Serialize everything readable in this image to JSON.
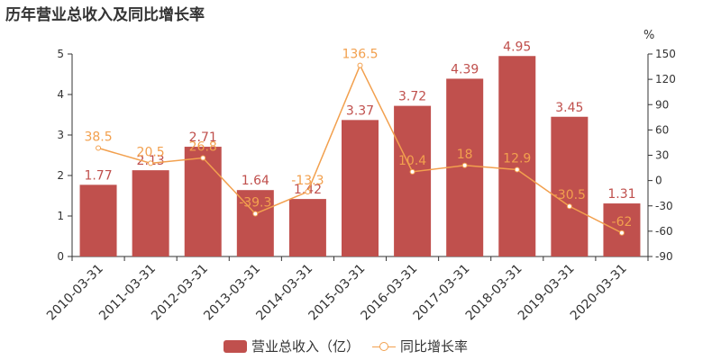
{
  "title": "历年营业总收入及同比增长率",
  "colors": {
    "bar": "#c0504d",
    "line": "#f2a04e",
    "axis": "#333333"
  },
  "chart_data": {
    "type": "bar",
    "categories": [
      "2010-03-31",
      "2011-03-31",
      "2012-03-31",
      "2013-03-31",
      "2014-03-31",
      "2015-03-31",
      "2016-03-31",
      "2017-03-31",
      "2018-03-31",
      "2019-03-31",
      "2020-03-31"
    ],
    "series": [
      {
        "name": "营业总收入（亿）",
        "type": "bar",
        "axis": "left",
        "values": [
          1.77,
          2.13,
          2.71,
          1.64,
          1.42,
          3.37,
          3.72,
          4.39,
          4.95,
          3.45,
          1.31
        ],
        "labels": [
          "1.77",
          "2.13",
          "2.71",
          "1.64",
          "1.42",
          "3.37",
          "3.72",
          "4.39",
          "4.95",
          "3.45",
          "1.31"
        ]
      },
      {
        "name": "同比增长率",
        "type": "line",
        "axis": "right",
        "values": [
          38.5,
          20.5,
          26.8,
          -39.3,
          -13.3,
          136.5,
          10.4,
          18,
          12.9,
          -30.5,
          -62
        ],
        "labels": [
          "38.5",
          "20.5",
          "26.8",
          "-39.3",
          "-13.3",
          "136.5",
          "10.4",
          "18",
          "12.9",
          "-30.5",
          "-62"
        ]
      }
    ],
    "y_left": {
      "ylim": [
        0,
        5
      ],
      "ticks": [
        "0",
        "1",
        "2",
        "3",
        "4",
        "5"
      ]
    },
    "y_right": {
      "ylim": [
        -90,
        150
      ],
      "unit": "%",
      "ticks": [
        "-90",
        "-60",
        "-30",
        "0",
        "30",
        "60",
        "90",
        "120",
        "150"
      ]
    },
    "legend": {
      "position": "bottom-center",
      "items": [
        "营业总收入（亿）",
        "同比增长率"
      ]
    },
    "grid": false
  }
}
